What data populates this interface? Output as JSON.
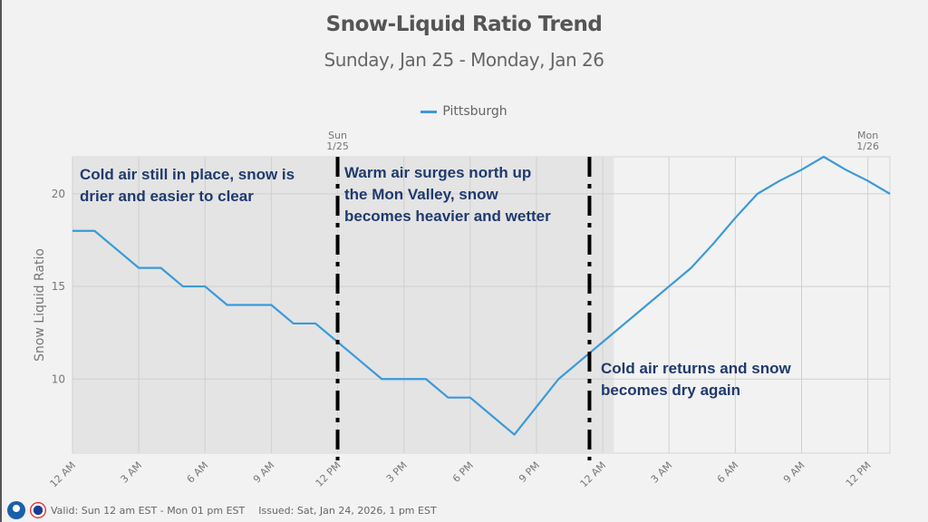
{
  "chart_data": {
    "type": "line",
    "title": "Snow-Liquid Ratio Trend",
    "subtitle": "Sunday, Jan 25 - Monday, Jan 26",
    "xlabel": "",
    "ylabel": "Snow Liquid Ratio",
    "ylim": [
      6,
      22
    ],
    "xlim_hours": [
      0,
      37
    ],
    "grid": true,
    "legend_position": "top-center",
    "y_ticks": [
      10,
      15,
      20
    ],
    "x_ticks": [
      {
        "hour": 0,
        "label": "12 AM"
      },
      {
        "hour": 3,
        "label": "3 AM"
      },
      {
        "hour": 6,
        "label": "6 AM"
      },
      {
        "hour": 9,
        "label": "9 AM"
      },
      {
        "hour": 12,
        "label": "12 PM"
      },
      {
        "hour": 15,
        "label": "3 PM"
      },
      {
        "hour": 18,
        "label": "6 PM"
      },
      {
        "hour": 21,
        "label": "9 PM"
      },
      {
        "hour": 24,
        "label": "12 AM"
      },
      {
        "hour": 27,
        "label": "3 AM"
      },
      {
        "hour": 30,
        "label": "6 AM"
      },
      {
        "hour": 33,
        "label": "9 AM"
      },
      {
        "hour": 36,
        "label": "12 PM"
      }
    ],
    "day_labels": [
      {
        "hour": 12,
        "line1": "Sun",
        "line2": "1/25"
      },
      {
        "hour": 36,
        "line1": "Mon",
        "line2": "1/26"
      }
    ],
    "series": [
      {
        "name": "Pittsburgh",
        "color": "#3a9ad9",
        "x_hours": [
          0,
          1,
          2,
          3,
          4,
          5,
          6,
          7,
          8,
          9,
          10,
          11,
          12,
          13,
          14,
          15,
          16,
          17,
          18,
          19,
          20,
          21,
          22,
          23,
          24,
          25,
          26,
          27,
          28,
          29,
          30,
          31,
          32,
          33,
          34,
          35,
          36,
          37
        ],
        "values": [
          18,
          18,
          17,
          16,
          16,
          15,
          15,
          14,
          14,
          14,
          13,
          13,
          12,
          11,
          10,
          10,
          10,
          9,
          9,
          8,
          7,
          8.5,
          10,
          11,
          12,
          13,
          14,
          15,
          16,
          17.3,
          18.7,
          20,
          20.7,
          21.3,
          22,
          21.3,
          20.7,
          20
        ]
      }
    ],
    "shaded_region": {
      "start_hour": 0,
      "end_hour": 24.5,
      "color": "#e4e4e4"
    },
    "divider_lines_hours": [
      12,
      23.4
    ],
    "annotations": [
      {
        "id": "cold",
        "lines": [
          "Cold air still in place, snow is",
          "drier and easier to clear"
        ]
      },
      {
        "id": "warm",
        "lines": [
          "Warm air surges north up",
          "the Mon Valley, snow",
          "becomes heavier and wetter"
        ]
      },
      {
        "id": "return",
        "lines": [
          "Cold air returns and snow",
          "becomes dry again"
        ]
      }
    ]
  },
  "legend": {
    "label": "Pittsburgh"
  },
  "footer": {
    "valid": "Valid: Sun 12 am EST - Mon 01 pm EST",
    "issued": "Issued: Sat, Jan 24, 2026, 1 pm EST",
    "logos": [
      "noaa-logo-icon",
      "nws-logo-icon"
    ]
  }
}
